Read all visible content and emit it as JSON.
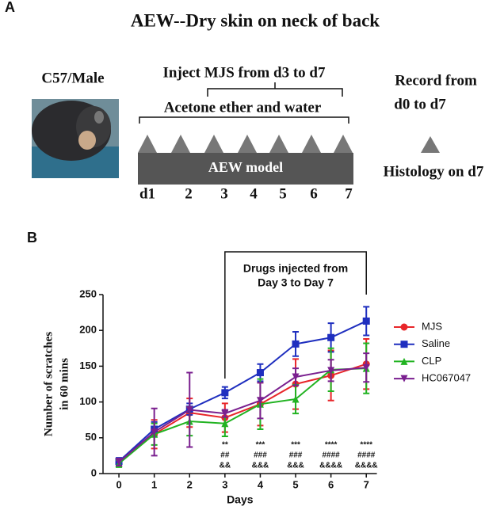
{
  "panel_a": {
    "label": "A",
    "title": "AEW--Dry skin on neck of back",
    "subject": "C57/Male",
    "inject": "Inject MJS from d3 to d7",
    "treatment": "Acetone ether and water",
    "model": "AEW model",
    "days": [
      "d1",
      "2",
      "3",
      "4",
      "5",
      "6",
      "7"
    ],
    "record": [
      "Record from",
      "d0 to d7"
    ],
    "histology": "Histology on d7"
  },
  "chart_data": {
    "type": "line",
    "panel_label": "B",
    "y_label": [
      "Number of scratches",
      "in 60 mins"
    ],
    "x_label": "Days",
    "bracket_text": [
      "Drugs injected from",
      "Day 3 to Day 7"
    ],
    "bracket_x": [
      3,
      7
    ],
    "x": [
      0,
      1,
      2,
      3,
      4,
      5,
      6,
      7
    ],
    "xlim": [
      -0.45,
      7.3
    ],
    "xticks": [
      0,
      1,
      2,
      3,
      4,
      5,
      6,
      7
    ],
    "ylim": [
      0,
      250
    ],
    "yticks": [
      0,
      50,
      100,
      150,
      200,
      250
    ],
    "series": [
      {
        "name": "MJS",
        "color": "#e8262a",
        "marker": "circle",
        "values": [
          15,
          55,
          85,
          78,
          97,
          125,
          137,
          153
        ],
        "errors": [
          5,
          20,
          20,
          20,
          30,
          35,
          35,
          35
        ]
      },
      {
        "name": "Saline",
        "color": "#1f2fbf",
        "marker": "square",
        "values": [
          17,
          62,
          90,
          113,
          141,
          181,
          190,
          213
        ],
        "errors": [
          5,
          10,
          8,
          8,
          12,
          17,
          20,
          20
        ]
      },
      {
        "name": "CLP",
        "color": "#22b322",
        "marker": "triangle",
        "values": [
          14,
          55,
          73,
          70,
          97,
          104,
          145,
          147
        ],
        "errors": [
          5,
          15,
          20,
          18,
          35,
          20,
          30,
          35
        ]
      },
      {
        "name": "HC067047",
        "color": "#7a1f8f",
        "marker": "triangle-down",
        "values": [
          16,
          58,
          89,
          84,
          102,
          135,
          144,
          148
        ],
        "errors": [
          5,
          33,
          52,
          5,
          25,
          12,
          15,
          20
        ]
      }
    ],
    "annotations": [
      {
        "x": 3,
        "lines": [
          "**",
          "##",
          "&&"
        ]
      },
      {
        "x": 4,
        "lines": [
          "***",
          "###",
          "&&&"
        ]
      },
      {
        "x": 5,
        "lines": [
          "***",
          "###",
          "&&&"
        ]
      },
      {
        "x": 6,
        "lines": [
          "****",
          "####",
          "&&&&"
        ]
      },
      {
        "x": 7,
        "lines": [
          "****",
          "####",
          "&&&&"
        ]
      }
    ]
  }
}
